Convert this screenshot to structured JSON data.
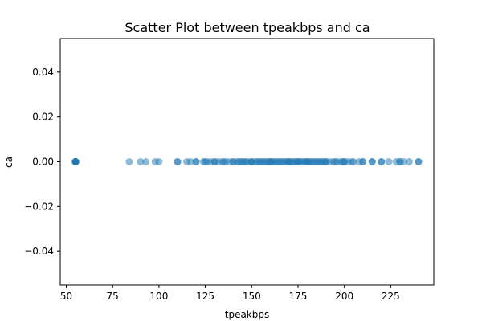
{
  "chart_data": {
    "type": "scatter",
    "title": "Scatter Plot between tpeakbps and ca",
    "xlabel": "tpeakbps",
    "ylabel": "ca",
    "xlim": [
      46.75,
      248.25
    ],
    "ylim": [
      -0.055,
      0.055
    ],
    "xticks": [
      50,
      75,
      100,
      125,
      150,
      175,
      200,
      225
    ],
    "xtick_labels": [
      "50",
      "75",
      "100",
      "125",
      "150",
      "175",
      "200",
      "225"
    ],
    "yticks": [
      -0.04,
      -0.02,
      0.0,
      0.02,
      0.04
    ],
    "ytick_labels": [
      "−0.04",
      "−0.02",
      "0.00",
      "0.02",
      "0.04"
    ],
    "grid": false,
    "legend": "none",
    "marker_color": "#1f77b4",
    "marker_alpha": 0.5,
    "x": [
      55,
      55,
      55,
      55,
      55,
      55,
      55,
      55,
      55,
      55,
      84,
      90,
      93,
      98,
      100,
      110,
      110,
      115,
      117,
      120,
      120,
      124,
      125,
      126,
      128,
      130,
      130,
      132,
      134,
      135,
      136,
      138,
      140,
      140,
      142,
      143,
      144,
      145,
      146,
      147,
      148,
      150,
      150,
      150,
      152,
      153,
      154,
      155,
      156,
      157,
      158,
      159,
      160,
      160,
      161,
      162,
      163,
      164,
      165,
      166,
      167,
      168,
      169,
      170,
      170,
      171,
      172,
      173,
      174,
      175,
      175,
      176,
      177,
      178,
      179,
      180,
      180,
      181,
      182,
      183,
      184,
      185,
      186,
      187,
      188,
      189,
      190,
      190,
      192,
      194,
      195,
      196,
      198,
      199,
      200,
      200,
      202,
      204,
      205,
      208,
      210,
      210,
      215,
      215,
      220,
      220,
      224,
      228,
      230,
      230,
      232,
      235,
      240,
      240
    ],
    "y": [
      0,
      0,
      0,
      0,
      0,
      0,
      0,
      0,
      0,
      0,
      0,
      0,
      0,
      0,
      0,
      0,
      0,
      0,
      0,
      0,
      0,
      0,
      0,
      0,
      0,
      0,
      0,
      0,
      0,
      0,
      0,
      0,
      0,
      0,
      0,
      0,
      0,
      0,
      0,
      0,
      0,
      0,
      0,
      0,
      0,
      0,
      0,
      0,
      0,
      0,
      0,
      0,
      0,
      0,
      0,
      0,
      0,
      0,
      0,
      0,
      0,
      0,
      0,
      0,
      0,
      0,
      0,
      0,
      0,
      0,
      0,
      0,
      0,
      0,
      0,
      0,
      0,
      0,
      0,
      0,
      0,
      0,
      0,
      0,
      0,
      0,
      0,
      0,
      0,
      0,
      0,
      0,
      0,
      0,
      0,
      0,
      0,
      0,
      0,
      0,
      0,
      0,
      0,
      0,
      0,
      0,
      0,
      0,
      0,
      0,
      0,
      0,
      0,
      0
    ]
  }
}
